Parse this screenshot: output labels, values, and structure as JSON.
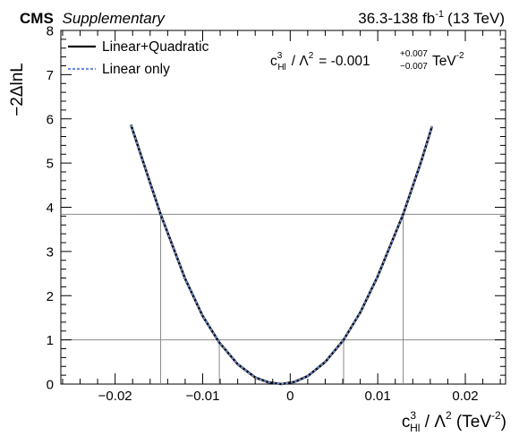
{
  "header": {
    "experiment": "CMS",
    "tag": "Supplementary",
    "lumi_main": "36.3-138 fb",
    "lumi_exp": "-1",
    "lumi_energy": "(13 TeV)"
  },
  "annotation": {
    "coef_base": "c",
    "coef_sup": "3",
    "coef_sub": "Hl",
    "slash_lambda": "/  Λ",
    "lambda_sup": "2",
    "equals_value": "= -0.001",
    "err_up": "+0.007",
    "err_down": "−0.007",
    "unit": "TeV",
    "unit_sup": "-2"
  },
  "axis_labels": {
    "y": "−2ΔlnL",
    "x_base": "c",
    "x_sup": "3",
    "x_sub": "Hl",
    "x_rest": " / Λ",
    "x_sup2": "2",
    "x_unit_open": " (TeV",
    "x_unit_sup": "-2",
    "x_unit_close": ")"
  },
  "chart_data": {
    "type": "line",
    "xlim": [
      -0.0262,
      0.0246
    ],
    "ylim": [
      0,
      8
    ],
    "x_ticks": [
      -0.02,
      -0.01,
      0,
      0.01,
      0.02
    ],
    "x_tick_labels": [
      "−0.02",
      "−0.01",
      "0",
      "0.01",
      "0.02"
    ],
    "y_ticks": [
      0,
      1,
      2,
      3,
      4,
      5,
      6,
      7,
      8
    ],
    "y_tick_labels": [
      "0",
      "1",
      "2",
      "3",
      "4",
      "5",
      "6",
      "7",
      "8"
    ],
    "reference_lines": [
      1,
      3.84
    ],
    "interval_markers_x": [
      -0.0148,
      -0.0081,
      0.0061,
      0.0129
    ],
    "legend_position": "top-left",
    "series": [
      {
        "name": "Linear+Quadratic",
        "color": "#000000",
        "style": "solid",
        "x": [
          -0.0182,
          -0.016,
          -0.0148,
          -0.012,
          -0.01,
          -0.0081,
          -0.006,
          -0.004,
          -0.0025,
          -0.001,
          0.0005,
          0.002,
          0.004,
          0.0061,
          0.008,
          0.01,
          0.0129,
          0.015,
          0.0162
        ],
        "y": [
          5.87,
          4.55,
          3.84,
          2.38,
          1.54,
          0.94,
          0.45,
          0.15,
          0.04,
          0.0,
          0.05,
          0.18,
          0.5,
          1.0,
          1.62,
          2.44,
          3.84,
          5.06,
          5.83
        ]
      },
      {
        "name": "Linear only",
        "color": "#6f8fd9",
        "style": "dashed",
        "x": [
          -0.0182,
          -0.016,
          -0.0148,
          -0.012,
          -0.01,
          -0.0081,
          -0.006,
          -0.004,
          -0.0025,
          -0.001,
          0.0005,
          0.002,
          0.004,
          0.0061,
          0.008,
          0.01,
          0.0129,
          0.015,
          0.0162
        ],
        "y": [
          5.87,
          4.55,
          3.84,
          2.38,
          1.54,
          0.94,
          0.45,
          0.15,
          0.04,
          0.0,
          0.05,
          0.18,
          0.5,
          1.0,
          1.62,
          2.44,
          3.84,
          5.06,
          5.83
        ]
      }
    ]
  }
}
